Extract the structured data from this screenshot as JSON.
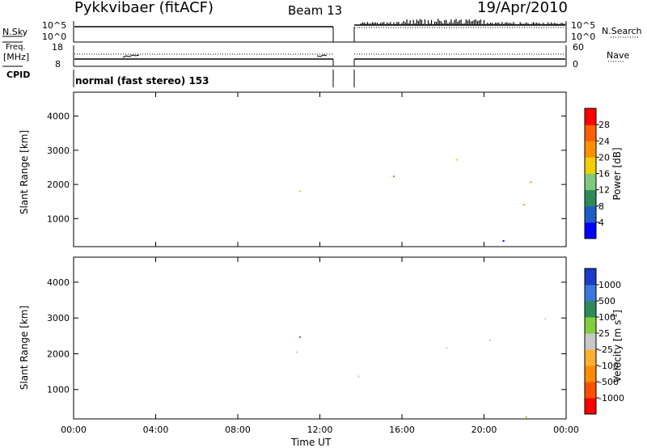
{
  "header": {
    "title": "Pykkvibaer (fitACF)",
    "beam": "Beam 13",
    "date": "19/Apr/2010"
  },
  "top_panels": {
    "nsky_label": "N.Sky",
    "nsearch_label": "N.Search",
    "noise_ticks_left": [
      "10^5",
      "10^0"
    ],
    "noise_ticks_right": [
      "10^5",
      "10^0"
    ],
    "freq_label_1": "Freq.",
    "freq_label_2": "[MHz]",
    "freq_ticks": [
      "18",
      "8"
    ],
    "nave_label": "Nave",
    "nave_ticks": [
      "60",
      "0"
    ],
    "cpid_label": "CPID",
    "cpid_value": "normal (fast stereo) 153"
  },
  "chart_data": [
    {
      "type": "heatmap",
      "name": "power",
      "ylabel": "Slant Range [km]",
      "yticks": [
        "1000",
        "2000",
        "3000",
        "4000"
      ],
      "ylim": [
        180,
        4700
      ],
      "xlim": [
        0,
        24
      ],
      "data_gap_hours": [
        13.0,
        13.8
      ],
      "colorbar_label": "Power [dB]",
      "colorbar_ticks": [
        "4",
        "8",
        "12",
        "16",
        "20",
        "24",
        "28"
      ],
      "colorbar_colors": [
        "#0000ff",
        "#1e5cc8",
        "#2e8b57",
        "#7fc87f",
        "#f0d000",
        "#ff9000",
        "#ff6000",
        "#ff0000"
      ]
    },
    {
      "type": "heatmap",
      "name": "velocity",
      "ylabel": "Slant Range [km]",
      "yticks": [
        "1000",
        "2000",
        "3000",
        "4000"
      ],
      "ylim": [
        180,
        4700
      ],
      "xlim": [
        0,
        24
      ],
      "xlabel": "Time UT",
      "xticks": [
        "00:00",
        "04:00",
        "08:00",
        "12:00",
        "16:00",
        "20:00",
        "00:00"
      ],
      "colorbar_label": "Velocity [m s",
      "colorbar_label_sup": "-1",
      "colorbar_label_end": "]",
      "colorbar_ticks": [
        "1000",
        "500",
        "100",
        "25",
        "-25",
        "-100",
        "-500",
        "-1000"
      ],
      "colorbar_colors": [
        "#1a3cc8",
        "#3c78dc",
        "#2e8b57",
        "#7fd03c",
        "#c8c8c8",
        "#ffb030",
        "#ff8c00",
        "#ff5000",
        "#ff0000"
      ]
    }
  ]
}
